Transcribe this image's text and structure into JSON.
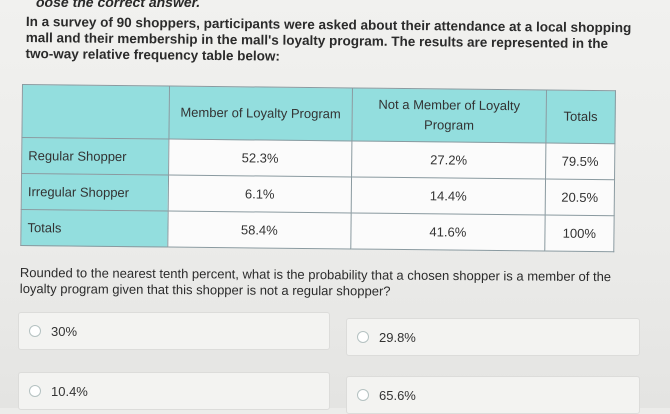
{
  "header": {
    "instruction": "oose the correct answer."
  },
  "prompt": {
    "text": "In a survey of 90 shoppers, participants were asked about their attendance at a local shopping mall and their membership in the mall's loyalty program. The results are represented in the two-way relative frequency table below:"
  },
  "table": {
    "columns": [
      "",
      "Member of Loyalty Program",
      "Not a Member of Loyalty Program",
      "Totals"
    ],
    "rows": [
      {
        "label": "Regular Shopper",
        "cells": [
          "52.3%",
          "27.2%",
          "79.5%"
        ]
      },
      {
        "label": "Irregular Shopper",
        "cells": [
          "6.1%",
          "14.4%",
          "20.5%"
        ]
      },
      {
        "label": "Totals",
        "cells": [
          "58.4%",
          "41.6%",
          "100%"
        ]
      }
    ]
  },
  "question": {
    "text": "Rounded to the nearest tenth percent, what is the probability that a chosen shopper is a member of the loyalty program given that this shopper is not a regular shopper?"
  },
  "choices": [
    {
      "label": "30%"
    },
    {
      "label": "29.8%"
    },
    {
      "label": "10.4%"
    },
    {
      "label": "65.6%"
    }
  ]
}
